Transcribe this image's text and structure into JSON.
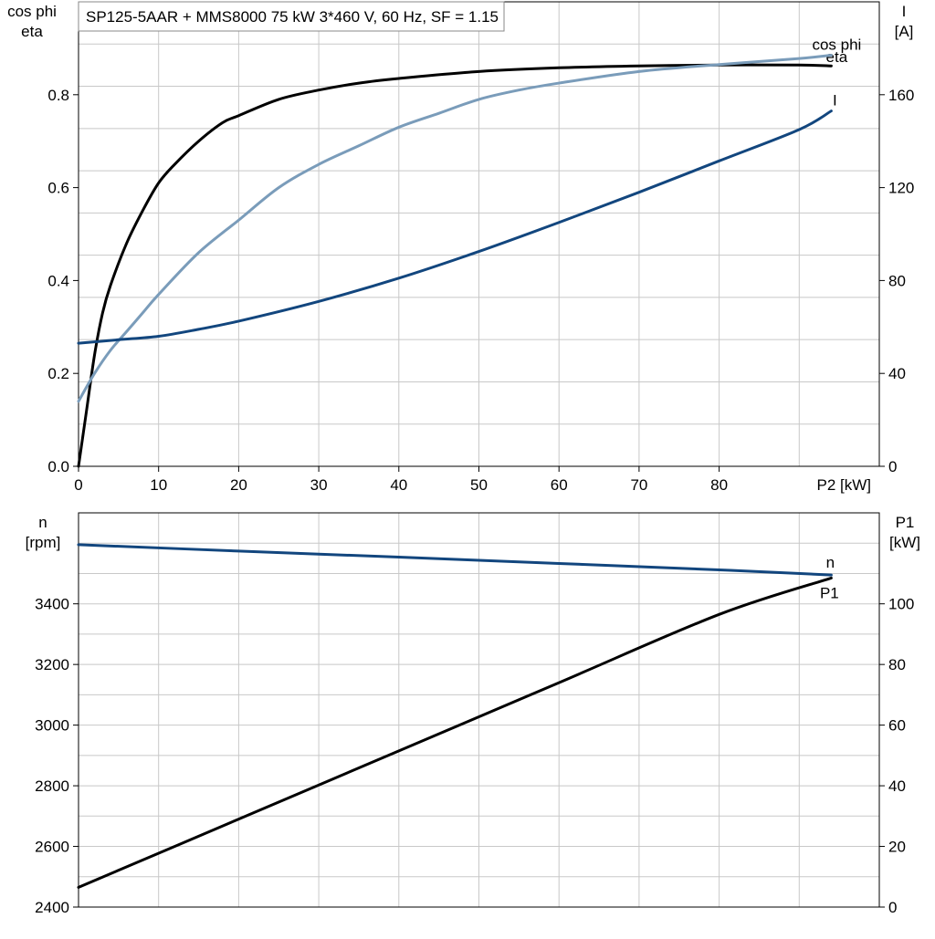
{
  "chart_data": [
    {
      "type": "line",
      "title": "SP125-5AAR + MMS8000   75 kW   3*460 V, 60 Hz, SF = 1.15",
      "xlabel": "P2 [kW]",
      "ylabel_left": [
        "cos phi",
        "eta"
      ],
      "ylabel_right": [
        "I",
        "[A]"
      ],
      "xlim": [
        0,
        100
      ],
      "ylim_left": [
        0,
        1.0
      ],
      "ylim_right": [
        0,
        200
      ],
      "x_ticks": [
        "0",
        "10",
        "20",
        "30",
        "40",
        "50",
        "60",
        "70",
        "80"
      ],
      "y_ticks_left": [
        "0.0",
        "0.2",
        "0.4",
        "0.6",
        "0.8"
      ],
      "y_ticks_right": [
        "0",
        "40",
        "80",
        "120",
        "160"
      ],
      "grid": true,
      "series": [
        {
          "name": "eta",
          "axis": "left",
          "color": "#000000",
          "x": [
            0,
            1,
            2,
            3,
            4,
            6,
            8,
            10,
            12,
            15,
            18,
            20,
            25,
            30,
            35,
            40,
            50,
            60,
            70,
            80,
            90,
            94
          ],
          "y": [
            0.0,
            0.12,
            0.24,
            0.33,
            0.39,
            0.48,
            0.55,
            0.61,
            0.65,
            0.7,
            0.74,
            0.755,
            0.79,
            0.81,
            0.825,
            0.835,
            0.85,
            0.858,
            0.862,
            0.864,
            0.864,
            0.862
          ]
        },
        {
          "name": "cos phi",
          "axis": "left",
          "color": "#7a9cba",
          "x": [
            0,
            2,
            4,
            6,
            8,
            10,
            15,
            20,
            25,
            30,
            35,
            40,
            45,
            50,
            55,
            60,
            70,
            80,
            90,
            94
          ],
          "y": [
            0.14,
            0.2,
            0.25,
            0.29,
            0.33,
            0.37,
            0.46,
            0.53,
            0.6,
            0.65,
            0.69,
            0.73,
            0.76,
            0.79,
            0.81,
            0.825,
            0.85,
            0.865,
            0.878,
            0.885
          ]
        },
        {
          "name": "I",
          "axis": "right",
          "color": "#12467e",
          "x": [
            0,
            5,
            10,
            15,
            20,
            30,
            40,
            50,
            60,
            70,
            80,
            90,
            94
          ],
          "y": [
            53,
            54.5,
            56,
            59,
            62.5,
            71,
            81,
            92.5,
            105,
            118,
            131.5,
            145,
            153
          ]
        }
      ]
    },
    {
      "type": "line",
      "title": "",
      "xlabel": "",
      "ylabel_left": [
        "n",
        "[rpm]"
      ],
      "ylabel_right": [
        "P1",
        "[kW]"
      ],
      "xlim": [
        0,
        100
      ],
      "ylim_left": [
        2400,
        3700
      ],
      "ylim_right": [
        0,
        130
      ],
      "y_ticks_left": [
        "2400",
        "2600",
        "2800",
        "3000",
        "3200",
        "3400"
      ],
      "y_ticks_right": [
        "0",
        "20",
        "40",
        "60",
        "80",
        "100"
      ],
      "grid": true,
      "series": [
        {
          "name": "n",
          "axis": "left",
          "color": "#12467e",
          "x": [
            0,
            20,
            40,
            60,
            80,
            94
          ],
          "y": [
            3595,
            3574,
            3554,
            3533,
            3512,
            3495
          ]
        },
        {
          "name": "P1",
          "axis": "right",
          "color": "#000000",
          "x": [
            0,
            20,
            40,
            60,
            80,
            94
          ],
          "y": [
            6.5,
            29,
            51.5,
            74,
            96.5,
            108.5
          ]
        }
      ]
    }
  ]
}
